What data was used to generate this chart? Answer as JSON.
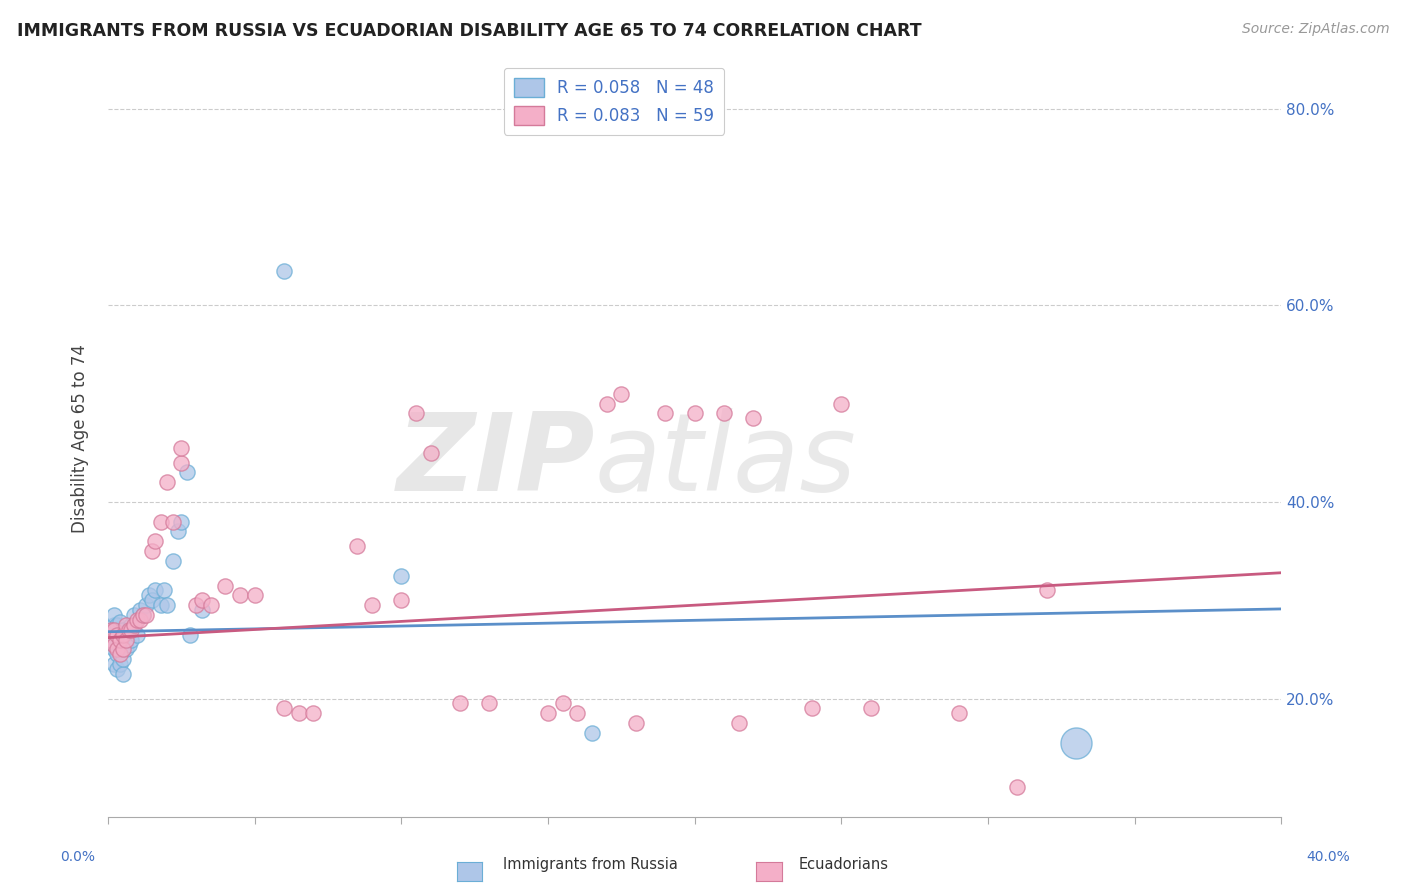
{
  "title": "IMMIGRANTS FROM RUSSIA VS ECUADORIAN DISABILITY AGE 65 TO 74 CORRELATION CHART",
  "source": "Source: ZipAtlas.com",
  "ylabel": "Disability Age 65 to 74",
  "legend_label_blue": "Immigrants from Russia",
  "legend_label_pink": "Ecuadorians",
  "legend_r_blue": "R = 0.058",
  "legend_n_blue": "N = 48",
  "legend_r_pink": "R = 0.083",
  "legend_n_pink": "N = 59",
  "xlim": [
    0.0,
    0.4
  ],
  "ylim": [
    0.08,
    0.85
  ],
  "yticks": [
    0.2,
    0.4,
    0.6,
    0.8
  ],
  "ytick_labels": [
    "20.0%",
    "40.0%",
    "60.0%",
    "80.0%"
  ],
  "color_blue_fill": "#aec6e8",
  "color_blue_edge": "#6baed6",
  "color_pink_fill": "#f4afc8",
  "color_pink_edge": "#d47a9a",
  "color_blue_line": "#5b8fc9",
  "color_pink_line": "#c85a80",
  "color_blue_text": "#4472c4",
  "background_color": "#ffffff",
  "grid_color": "#cccccc",
  "scatter_blue": {
    "x": [
      0.001,
      0.001,
      0.001,
      0.002,
      0.002,
      0.002,
      0.002,
      0.002,
      0.003,
      0.003,
      0.003,
      0.003,
      0.003,
      0.004,
      0.004,
      0.004,
      0.004,
      0.005,
      0.005,
      0.005,
      0.005,
      0.006,
      0.006,
      0.007,
      0.007,
      0.008,
      0.008,
      0.009,
      0.01,
      0.011,
      0.012,
      0.013,
      0.014,
      0.015,
      0.016,
      0.018,
      0.019,
      0.02,
      0.022,
      0.024,
      0.025,
      0.027,
      0.028,
      0.032,
      0.06,
      0.1,
      0.165,
      0.33
    ],
    "y": [
      0.27,
      0.265,
      0.26,
      0.235,
      0.25,
      0.255,
      0.275,
      0.285,
      0.23,
      0.245,
      0.255,
      0.265,
      0.275,
      0.235,
      0.25,
      0.262,
      0.278,
      0.225,
      0.24,
      0.255,
      0.27,
      0.25,
      0.265,
      0.255,
      0.27,
      0.26,
      0.275,
      0.285,
      0.265,
      0.29,
      0.285,
      0.295,
      0.305,
      0.3,
      0.31,
      0.295,
      0.31,
      0.295,
      0.34,
      0.37,
      0.38,
      0.43,
      0.265,
      0.29,
      0.635,
      0.325,
      0.165,
      0.155
    ],
    "large_idx": 47,
    "large_size": 500
  },
  "scatter_pink": {
    "x": [
      0.001,
      0.001,
      0.002,
      0.002,
      0.003,
      0.003,
      0.004,
      0.004,
      0.005,
      0.005,
      0.006,
      0.006,
      0.007,
      0.008,
      0.009,
      0.01,
      0.011,
      0.012,
      0.013,
      0.015,
      0.016,
      0.018,
      0.02,
      0.022,
      0.025,
      0.025,
      0.03,
      0.032,
      0.035,
      0.04,
      0.045,
      0.05,
      0.06,
      0.065,
      0.07,
      0.085,
      0.09,
      0.1,
      0.105,
      0.11,
      0.12,
      0.13,
      0.15,
      0.155,
      0.16,
      0.17,
      0.175,
      0.18,
      0.19,
      0.2,
      0.21,
      0.215,
      0.22,
      0.24,
      0.25,
      0.26,
      0.29,
      0.31,
      0.32
    ],
    "y": [
      0.26,
      0.27,
      0.255,
      0.27,
      0.25,
      0.265,
      0.245,
      0.26,
      0.25,
      0.265,
      0.26,
      0.275,
      0.27,
      0.27,
      0.275,
      0.28,
      0.28,
      0.285,
      0.285,
      0.35,
      0.36,
      0.38,
      0.42,
      0.38,
      0.44,
      0.455,
      0.295,
      0.3,
      0.295,
      0.315,
      0.305,
      0.305,
      0.19,
      0.185,
      0.185,
      0.355,
      0.295,
      0.3,
      0.49,
      0.45,
      0.195,
      0.195,
      0.185,
      0.195,
      0.185,
      0.5,
      0.51,
      0.175,
      0.49,
      0.49,
      0.49,
      0.175,
      0.485,
      0.19,
      0.5,
      0.19,
      0.185,
      0.11,
      0.31
    ]
  },
  "trendline_blue_intercept": 0.268,
  "trendline_blue_slope": 0.058,
  "trendline_pink_intercept": 0.262,
  "trendline_pink_slope": 0.165
}
